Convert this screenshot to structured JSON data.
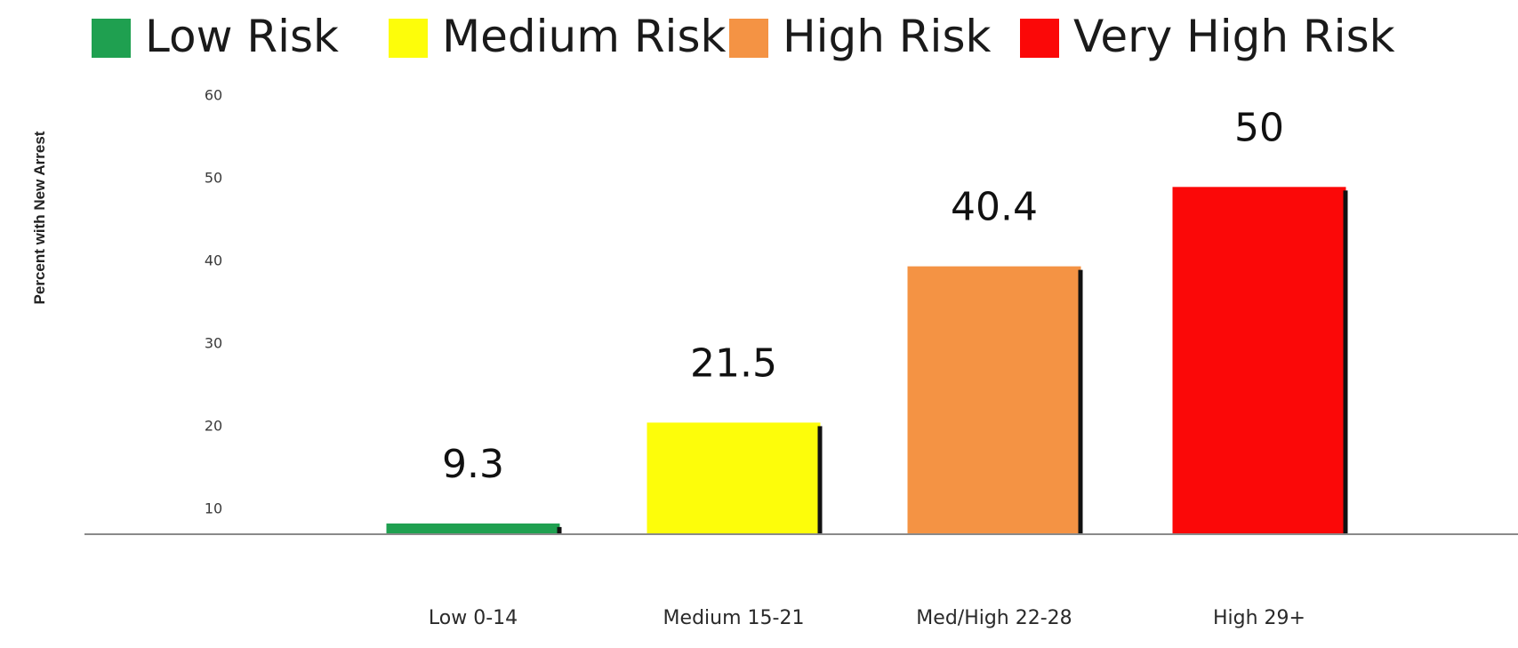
{
  "chart_data": {
    "type": "bar",
    "ylabel": "Percent with New Arrest",
    "xlabel": "",
    "yticks": [
      10,
      20,
      30,
      40,
      50,
      60
    ],
    "ylim": [
      8,
      61
    ],
    "grid": false,
    "legend_position": "top",
    "categories": [
      "Low 0-14",
      "Medium 15-21",
      "Med/High 22-28",
      "High 29+"
    ],
    "values": [
      9.3,
      21.5,
      40.4,
      50
    ],
    "value_labels": [
      "9.3",
      "21.5",
      "40.4",
      "50"
    ],
    "colors": [
      "#1fa050",
      "#fdfd0a",
      "#f49344",
      "#fb0808"
    ],
    "legend": [
      {
        "label": "Low Risk",
        "color": "#1fa050"
      },
      {
        "label": "Medium Risk",
        "color": "#fdfd0a"
      },
      {
        "label": "High Risk",
        "color": "#f49344"
      },
      {
        "label": "Very High Risk",
        "color": "#fb0808"
      }
    ]
  }
}
